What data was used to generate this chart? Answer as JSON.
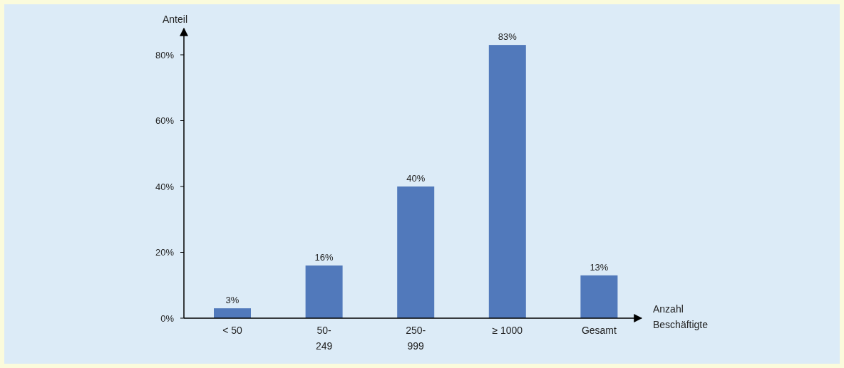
{
  "chart_data": {
    "type": "bar",
    "ylabel": "Anteil",
    "xlabel": "Anzahl Beschäftigte",
    "categories": [
      "< 50",
      "50-249",
      "250-999",
      "≥ 1000",
      "Gesamt"
    ],
    "values": [
      3,
      16,
      40,
      83,
      13
    ],
    "color": "#5179bb",
    "ylim": [
      0,
      88
    ],
    "yticks": [
      {
        "value": 0,
        "label": "0%"
      },
      {
        "value": 20,
        "label": "20%"
      },
      {
        "value": 40,
        "label": "40%"
      },
      {
        "value": 60,
        "label": "60%"
      },
      {
        "value": 80,
        "label": "80%"
      }
    ],
    "value_labels": [
      "3%",
      "16%",
      "40%",
      "83%",
      "13%"
    ],
    "grid": false
  }
}
